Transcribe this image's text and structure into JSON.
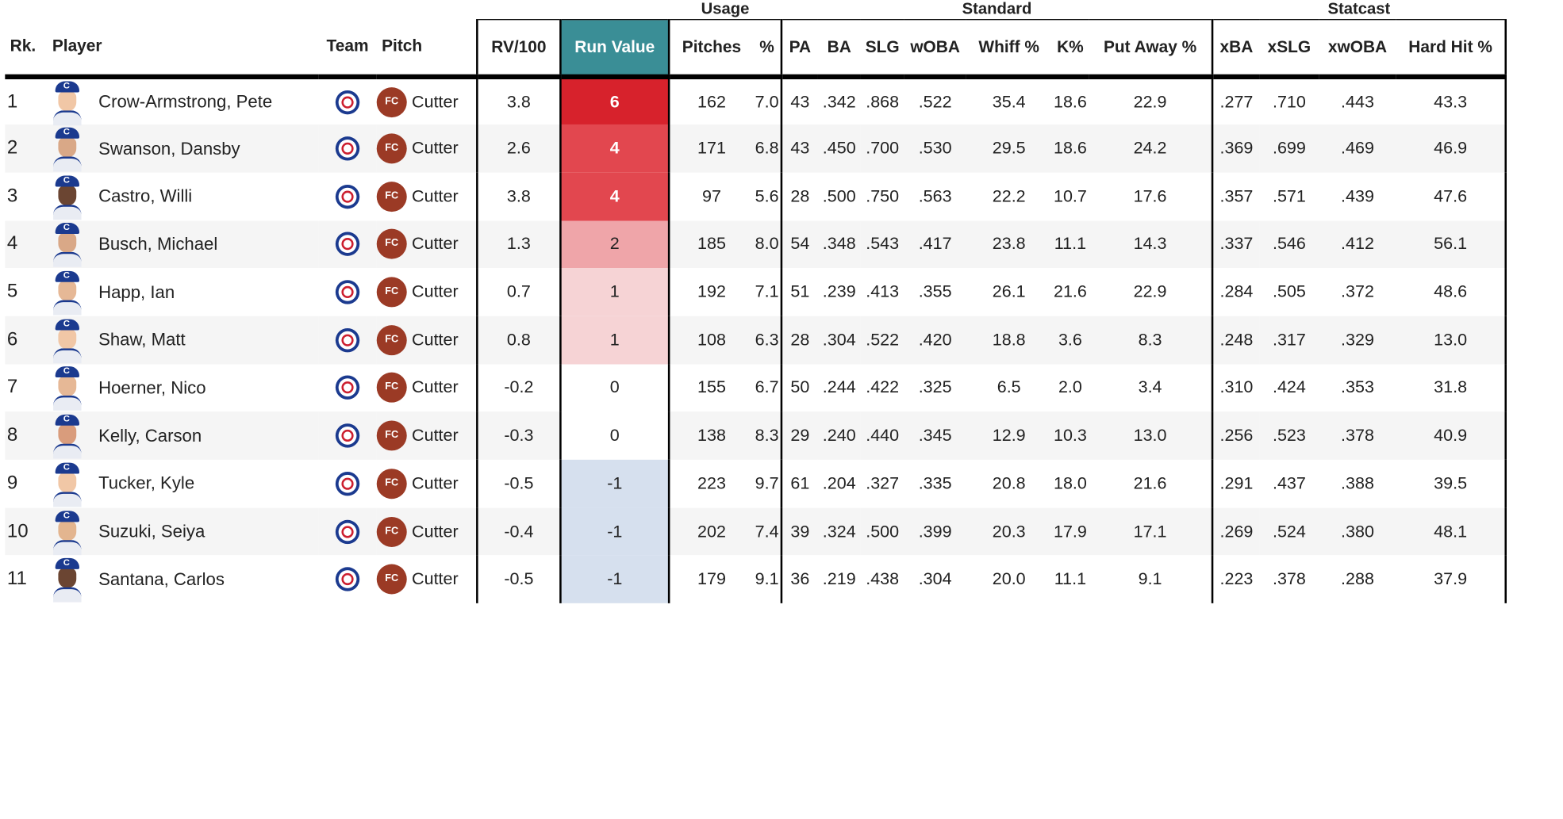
{
  "groups": {
    "usage": "Usage",
    "standard": "Standard",
    "statcast": "Statcast"
  },
  "headers": [
    "Rk.",
    "Player",
    "Team",
    "Pitch",
    "RV/100",
    "Run Value",
    "Pitches",
    "%",
    "PA",
    "BA",
    "SLG",
    "wOBA",
    "Whiff %",
    "K%",
    "Put Away %",
    "xBA",
    "xSLG",
    "xwOBA",
    "Hard Hit %"
  ],
  "colors": {
    "run_value_header": "#3a8e96",
    "rv_6": "#d7222c",
    "rv_4": "#e2474f",
    "rv_2": "#efa5a9",
    "rv_1": "#f6d3d5",
    "rv_0": "#ffffff",
    "rv_neg1": "#d6e0ee",
    "pitch_badge": "#9b3a25",
    "team_logo": "#1b3a8f"
  },
  "icons": {
    "headshot": "player-headshot",
    "team": "cubs-logo-icon",
    "pitch": "fc-pitch-badge"
  },
  "rows": [
    {
      "rk": "1",
      "player": "Crow-Armstrong, Pete",
      "badge": "FC",
      "pitch": "Cutter",
      "rv100": "3.8",
      "rv": "6",
      "rvcolor": "#d7222c",
      "rvtext": "#ffffff",
      "skin": "#f1c7a6",
      "pitches": "162",
      "pct": "7.0",
      "pa": "43",
      "ba": ".342",
      "slg": ".868",
      "woba": ".522",
      "whiff": "35.4",
      "k": "18.6",
      "putaway": "22.9",
      "xba": ".277",
      "xslg": ".710",
      "xwoba": ".443",
      "hardhit": "43.3"
    },
    {
      "rk": "2",
      "player": "Swanson, Dansby",
      "badge": "FC",
      "pitch": "Cutter",
      "rv100": "2.6",
      "rv": "4",
      "rvcolor": "#e2474f",
      "rvtext": "#ffffff",
      "skin": "#d9a887",
      "pitches": "171",
      "pct": "6.8",
      "pa": "43",
      "ba": ".450",
      "slg": ".700",
      "woba": ".530",
      "whiff": "29.5",
      "k": "18.6",
      "putaway": "24.2",
      "xba": ".369",
      "xslg": ".699",
      "xwoba": ".469",
      "hardhit": "46.9"
    },
    {
      "rk": "3",
      "player": "Castro, Willi",
      "badge": "FC",
      "pitch": "Cutter",
      "rv100": "3.8",
      "rv": "4",
      "rvcolor": "#e2474f",
      "rvtext": "#ffffff",
      "skin": "#6b4532",
      "pitches": "97",
      "pct": "5.6",
      "pa": "28",
      "ba": ".500",
      "slg": ".750",
      "woba": ".563",
      "whiff": "22.2",
      "k": "10.7",
      "putaway": "17.6",
      "xba": ".357",
      "xslg": ".571",
      "xwoba": ".439",
      "hardhit": "47.6"
    },
    {
      "rk": "4",
      "player": "Busch, Michael",
      "badge": "FC",
      "pitch": "Cutter",
      "rv100": "1.3",
      "rv": "2",
      "rvcolor": "#efa5a9",
      "rvtext": "#222222",
      "skin": "#d9a887",
      "pitches": "185",
      "pct": "8.0",
      "pa": "54",
      "ba": ".348",
      "slg": ".543",
      "woba": ".417",
      "whiff": "23.8",
      "k": "11.1",
      "putaway": "14.3",
      "xba": ".337",
      "xslg": ".546",
      "xwoba": ".412",
      "hardhit": "56.1"
    },
    {
      "rk": "5",
      "player": "Happ, Ian",
      "badge": "FC",
      "pitch": "Cutter",
      "rv100": "0.7",
      "rv": "1",
      "rvcolor": "#f6d3d5",
      "rvtext": "#222222",
      "skin": "#e6b896",
      "pitches": "192",
      "pct": "7.1",
      "pa": "51",
      "ba": ".239",
      "slg": ".413",
      "woba": ".355",
      "whiff": "26.1",
      "k": "21.6",
      "putaway": "22.9",
      "xba": ".284",
      "xslg": ".505",
      "xwoba": ".372",
      "hardhit": "48.6"
    },
    {
      "rk": "6",
      "player": "Shaw, Matt",
      "badge": "FC",
      "pitch": "Cutter",
      "rv100": "0.8",
      "rv": "1",
      "rvcolor": "#f6d3d5",
      "rvtext": "#222222",
      "skin": "#f1c7a6",
      "pitches": "108",
      "pct": "6.3",
      "pa": "28",
      "ba": ".304",
      "slg": ".522",
      "woba": ".420",
      "whiff": "18.8",
      "k": "3.6",
      "putaway": "8.3",
      "xba": ".248",
      "xslg": ".317",
      "xwoba": ".329",
      "hardhit": "13.0"
    },
    {
      "rk": "7",
      "player": "Hoerner, Nico",
      "badge": "FC",
      "pitch": "Cutter",
      "rv100": "-0.2",
      "rv": "0",
      "rvcolor": "#ffffff",
      "rvtext": "#222222",
      "skin": "#e6b896",
      "pitches": "155",
      "pct": "6.7",
      "pa": "50",
      "ba": ".244",
      "slg": ".422",
      "woba": ".325",
      "whiff": "6.5",
      "k": "2.0",
      "putaway": "3.4",
      "xba": ".310",
      "xslg": ".424",
      "xwoba": ".353",
      "hardhit": "31.8"
    },
    {
      "rk": "8",
      "player": "Kelly, Carson",
      "badge": "FC",
      "pitch": "Cutter",
      "rv100": "-0.3",
      "rv": "0",
      "rvcolor": "#ffffff",
      "rvtext": "#222222",
      "skin": "#d99c7c",
      "pitches": "138",
      "pct": "8.3",
      "pa": "29",
      "ba": ".240",
      "slg": ".440",
      "woba": ".345",
      "whiff": "12.9",
      "k": "10.3",
      "putaway": "13.0",
      "xba": ".256",
      "xslg": ".523",
      "xwoba": ".378",
      "hardhit": "40.9"
    },
    {
      "rk": "9",
      "player": "Tucker, Kyle",
      "badge": "FC",
      "pitch": "Cutter",
      "rv100": "-0.5",
      "rv": "-1",
      "rvcolor": "#d6e0ee",
      "rvtext": "#222222",
      "skin": "#f1c7a6",
      "pitches": "223",
      "pct": "9.7",
      "pa": "61",
      "ba": ".204",
      "slg": ".327",
      "woba": ".335",
      "whiff": "20.8",
      "k": "18.0",
      "putaway": "21.6",
      "xba": ".291",
      "xslg": ".437",
      "xwoba": ".388",
      "hardhit": "39.5"
    },
    {
      "rk": "10",
      "player": "Suzuki, Seiya",
      "badge": "FC",
      "pitch": "Cutter",
      "rv100": "-0.4",
      "rv": "-1",
      "rvcolor": "#d6e0ee",
      "rvtext": "#222222",
      "skin": "#e3b58f",
      "pitches": "202",
      "pct": "7.4",
      "pa": "39",
      "ba": ".324",
      "slg": ".500",
      "woba": ".399",
      "whiff": "20.3",
      "k": "17.9",
      "putaway": "17.1",
      "xba": ".269",
      "xslg": ".524",
      "xwoba": ".380",
      "hardhit": "48.1"
    },
    {
      "rk": "11",
      "player": "Santana, Carlos",
      "badge": "FC",
      "pitch": "Cutter",
      "rv100": "-0.5",
      "rv": "-1",
      "rvcolor": "#d6e0ee",
      "rvtext": "#222222",
      "skin": "#6b4532",
      "pitches": "179",
      "pct": "9.1",
      "pa": "36",
      "ba": ".219",
      "slg": ".438",
      "woba": ".304",
      "whiff": "20.0",
      "k": "11.1",
      "putaway": "9.1",
      "xba": ".223",
      "xslg": ".378",
      "xwoba": ".288",
      "hardhit": "37.9"
    }
  ]
}
